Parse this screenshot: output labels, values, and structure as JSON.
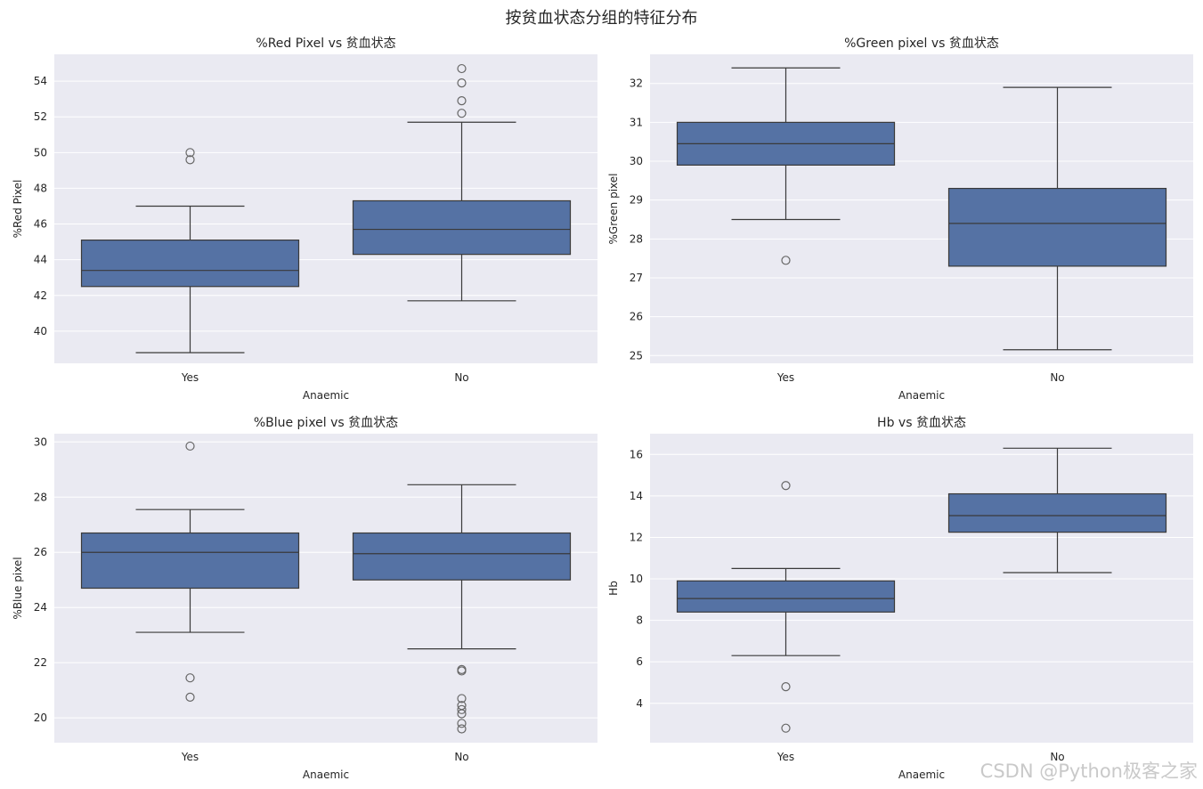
{
  "figure": {
    "title": "按贫血状态分组的特征分布"
  },
  "watermark": "CSDN @Python极客之家",
  "colors": {
    "box_fill": "#5572a4",
    "box_edge": "#3a3a3a",
    "plot_bg": "#eaeaf2",
    "grid": "#ffffff",
    "flier": "#666666"
  },
  "chart_data": [
    {
      "type": "box",
      "title": "%Red Pixel vs 贫血状态",
      "xlabel": "Anaemic",
      "ylabel": "%Red Pixel",
      "categories": [
        "Yes",
        "No"
      ],
      "ylim": [
        38.2,
        55.5
      ],
      "yticks": [
        40,
        42,
        44,
        46,
        48,
        50,
        52,
        54
      ],
      "ytick_labels": [
        "40",
        "42",
        "44",
        "46",
        "48",
        "50",
        "52",
        "54"
      ],
      "grid": true,
      "boxes": [
        {
          "category": "Yes",
          "whisker_low": 38.8,
          "q1": 42.5,
          "median": 43.4,
          "q3": 45.1,
          "whisker_high": 47.0,
          "fliers": [
            49.6,
            50.0
          ]
        },
        {
          "category": "No",
          "whisker_low": 41.7,
          "q1": 44.3,
          "median": 45.7,
          "q3": 47.3,
          "whisker_high": 51.7,
          "fliers": [
            52.2,
            52.9,
            53.9,
            54.7
          ]
        }
      ]
    },
    {
      "type": "box",
      "title": "%Green pixel vs 贫血状态",
      "xlabel": "Anaemic",
      "ylabel": "%Green pixel",
      "categories": [
        "Yes",
        "No"
      ],
      "ylim": [
        24.8,
        32.75
      ],
      "yticks": [
        25,
        26,
        27,
        28,
        29,
        30,
        31,
        32
      ],
      "ytick_labels": [
        "25",
        "26",
        "27",
        "28",
        "29",
        "30",
        "31",
        "32"
      ],
      "grid": true,
      "boxes": [
        {
          "category": "Yes",
          "whisker_low": 28.5,
          "q1": 29.9,
          "median": 30.45,
          "q3": 31.0,
          "whisker_high": 32.4,
          "fliers": [
            27.45
          ]
        },
        {
          "category": "No",
          "whisker_low": 25.15,
          "q1": 27.3,
          "median": 28.4,
          "q3": 29.3,
          "whisker_high": 31.9,
          "fliers": []
        }
      ]
    },
    {
      "type": "box",
      "title": "%Blue pixel vs 贫血状态",
      "xlabel": "Anaemic",
      "ylabel": "%Blue pixel",
      "categories": [
        "Yes",
        "No"
      ],
      "ylim": [
        19.1,
        30.3
      ],
      "yticks": [
        20,
        22,
        24,
        26,
        28,
        30
      ],
      "ytick_labels": [
        "20",
        "22",
        "24",
        "26",
        "28",
        "30"
      ],
      "grid": true,
      "boxes": [
        {
          "category": "Yes",
          "whisker_low": 23.1,
          "q1": 24.7,
          "median": 26.0,
          "q3": 26.7,
          "whisker_high": 27.55,
          "fliers": [
            29.85,
            21.45,
            20.75
          ]
        },
        {
          "category": "No",
          "whisker_low": 22.5,
          "q1": 25.0,
          "median": 25.95,
          "q3": 26.7,
          "whisker_high": 28.45,
          "fliers": [
            21.75,
            21.7,
            20.7,
            20.45,
            20.3,
            20.15,
            19.8,
            19.6
          ]
        }
      ]
    },
    {
      "type": "box",
      "title": "Hb vs 贫血状态",
      "xlabel": "Anaemic",
      "ylabel": "Hb",
      "categories": [
        "Yes",
        "No"
      ],
      "ylim": [
        2.1,
        17.0
      ],
      "yticks": [
        4,
        6,
        8,
        10,
        12,
        14,
        16
      ],
      "ytick_labels": [
        "4",
        "6",
        "8",
        "10",
        "12",
        "14",
        "16"
      ],
      "grid": true,
      "boxes": [
        {
          "category": "Yes",
          "whisker_low": 6.3,
          "q1": 8.4,
          "median": 9.05,
          "q3": 9.9,
          "whisker_high": 10.5,
          "fliers": [
            14.5,
            4.8,
            2.8
          ]
        },
        {
          "category": "No",
          "whisker_low": 10.3,
          "q1": 12.25,
          "median": 13.05,
          "q3": 14.1,
          "whisker_high": 16.3,
          "fliers": []
        }
      ]
    }
  ]
}
